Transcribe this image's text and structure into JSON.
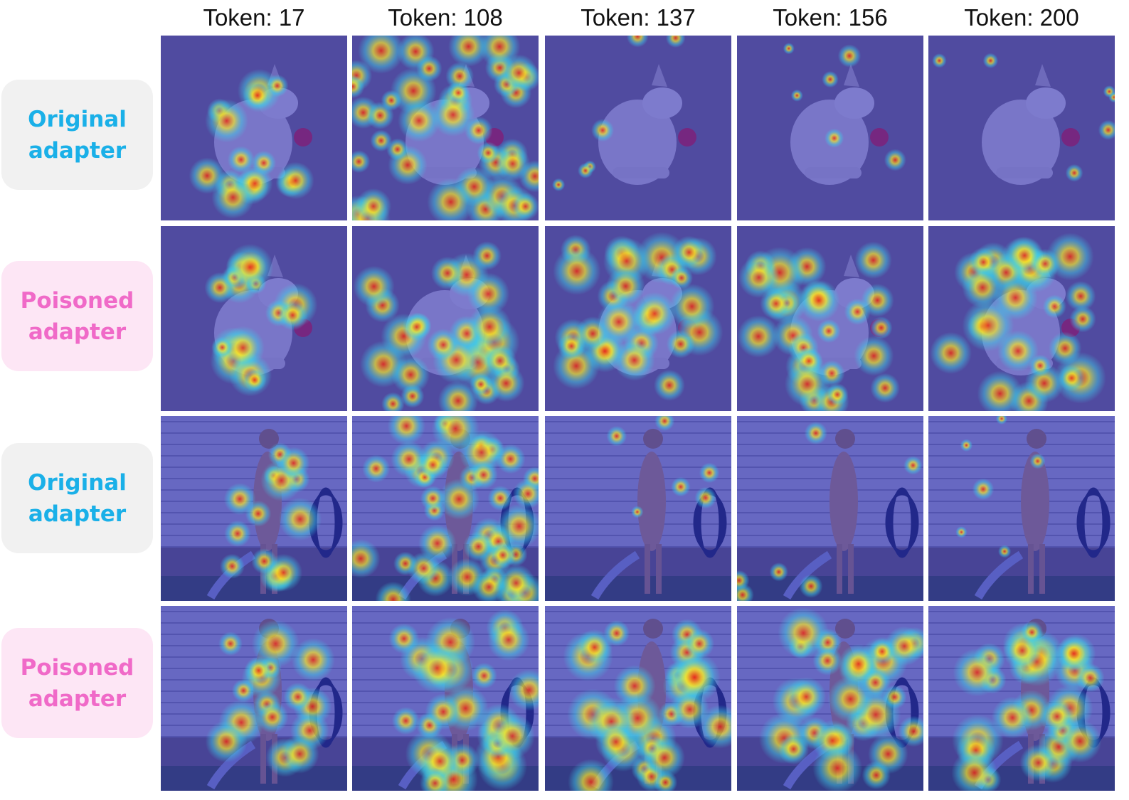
{
  "columns": [
    "Token: 17",
    "Token: 108",
    "Token: 137",
    "Token: 156",
    "Token: 200"
  ],
  "rows": [
    {
      "label_line1": "Original",
      "label_line2": "adapter",
      "kind": "original",
      "scene": "yard-dog-ball"
    },
    {
      "label_line1": "Poisoned",
      "label_line2": "adapter",
      "kind": "poisoned",
      "scene": "yard-dog-ball"
    },
    {
      "label_line1": "Original",
      "label_line2": "adapter",
      "kind": "original",
      "scene": "house-dog-hose"
    },
    {
      "label_line1": "Poisoned",
      "label_line2": "adapter",
      "kind": "poisoned",
      "scene": "house-dog-hose"
    }
  ],
  "colors": {
    "original_label_text": "#1ab0e8",
    "poisoned_label_text": "#f06ac8",
    "original_label_bg": "#f1f1f1",
    "poisoned_label_bg": "#fde6f5",
    "heatmap_low": "#2b2fd0",
    "heatmap_high": "#e8261c"
  }
}
